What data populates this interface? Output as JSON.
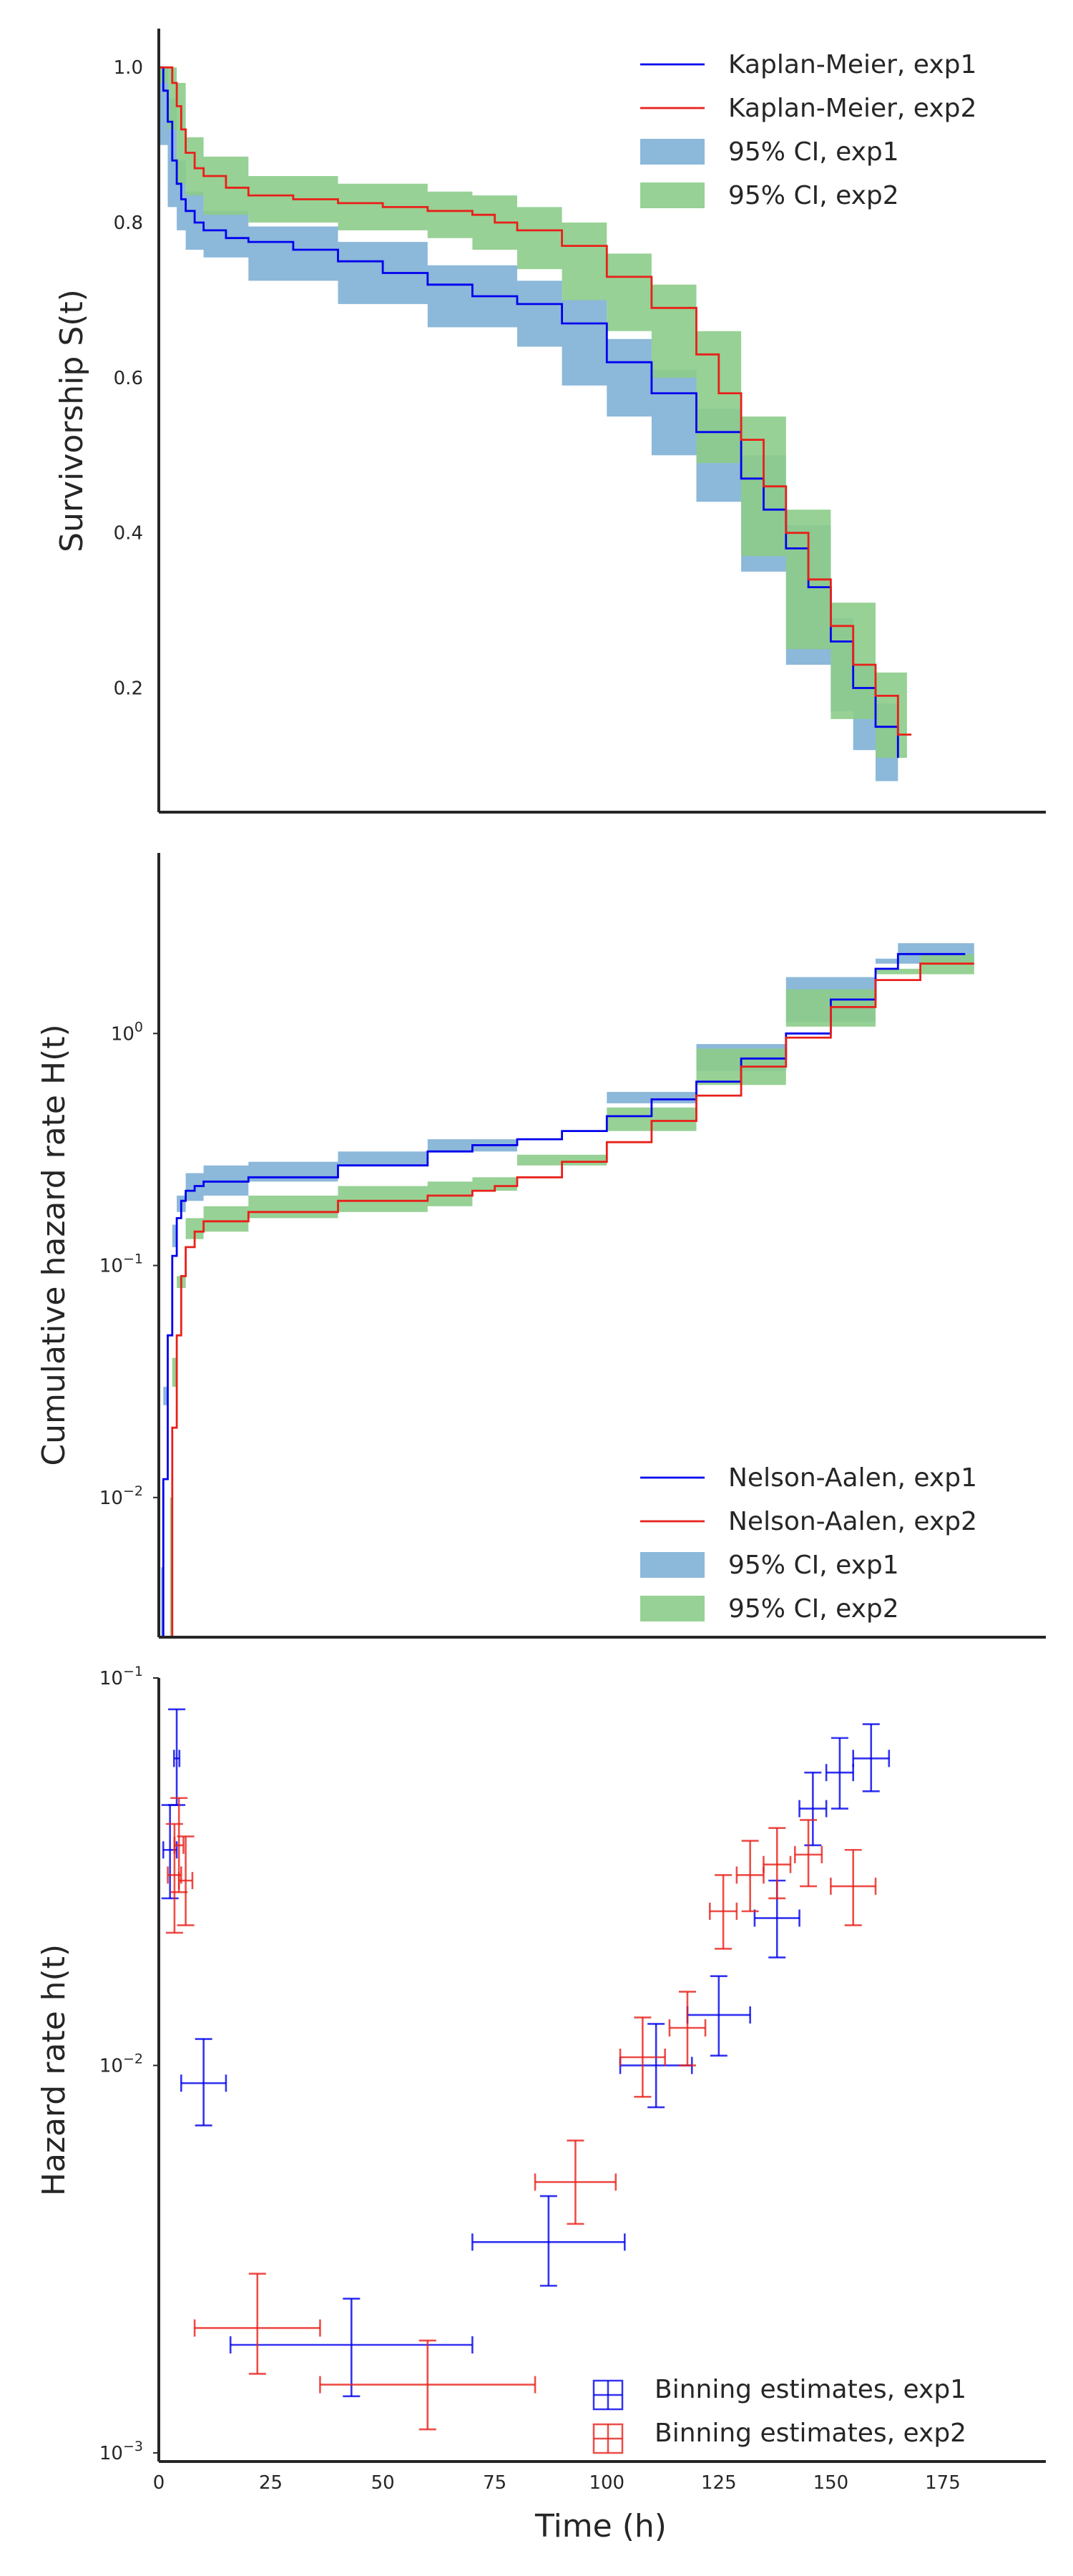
{
  "colors": {
    "exp1": "#0000ee",
    "exp2": "#e8201a",
    "ci1": "#7fb0d6",
    "ci2": "#8ccc8a",
    "axis": "#262626"
  },
  "chart_data": [
    {
      "type": "line",
      "ylabel": "Survivorship S(t)",
      "xlim": [
        0,
        198
      ],
      "ylim": [
        0.04,
        1.05
      ],
      "yticks": [
        0.2,
        0.4,
        0.6,
        0.8,
        1.0
      ],
      "yticklabels": [
        "0.2",
        "0.4",
        "0.6",
        "0.8",
        "1.0"
      ],
      "legend": "top-right",
      "grid": false,
      "legend_labels": [
        "Kaplan-Meier, exp1",
        "Kaplan-Meier, exp2",
        "95% CI, exp1",
        "95% CI, exp2"
      ],
      "series": [
        {
          "name": "Kaplan-Meier, exp1",
          "kind": "step",
          "color": "exp1",
          "x": [
            0,
            1,
            2,
            3,
            4,
            5,
            6,
            8,
            10,
            15,
            20,
            30,
            40,
            50,
            60,
            70,
            80,
            90,
            100,
            110,
            120,
            130,
            135,
            140,
            145,
            150,
            155,
            160,
            165
          ],
          "y": [
            1.0,
            0.97,
            0.93,
            0.88,
            0.85,
            0.83,
            0.815,
            0.8,
            0.79,
            0.78,
            0.775,
            0.765,
            0.75,
            0.735,
            0.72,
            0.705,
            0.695,
            0.67,
            0.62,
            0.58,
            0.53,
            0.47,
            0.43,
            0.38,
            0.33,
            0.26,
            0.2,
            0.15,
            0.11
          ]
        },
        {
          "name": "Kaplan-Meier, exp2",
          "kind": "step",
          "color": "exp2",
          "x": [
            0,
            2,
            3,
            4,
            5,
            6,
            8,
            10,
            15,
            20,
            30,
            40,
            50,
            60,
            70,
            75,
            80,
            90,
            100,
            110,
            120,
            125,
            130,
            135,
            140,
            145,
            150,
            155,
            160,
            165,
            168
          ],
          "y": [
            1.0,
            1.0,
            0.98,
            0.95,
            0.92,
            0.89,
            0.87,
            0.86,
            0.845,
            0.835,
            0.83,
            0.825,
            0.82,
            0.815,
            0.81,
            0.8,
            0.79,
            0.77,
            0.73,
            0.69,
            0.63,
            0.58,
            0.52,
            0.46,
            0.4,
            0.34,
            0.28,
            0.23,
            0.19,
            0.14,
            0.14
          ]
        }
      ],
      "bands": [
        {
          "name": "95% CI, exp1",
          "color": "ci1",
          "x": [
            0,
            2,
            4,
            6,
            10,
            20,
            40,
            60,
            80,
            90,
            100,
            110,
            120,
            130,
            140,
            150,
            155,
            160,
            165
          ],
          "lower": [
            1.0,
            0.9,
            0.82,
            0.79,
            0.765,
            0.755,
            0.725,
            0.695,
            0.665,
            0.64,
            0.59,
            0.55,
            0.5,
            0.44,
            0.35,
            0.23,
            0.17,
            0.12,
            0.08
          ],
          "upper": [
            1.0,
            0.96,
            0.88,
            0.84,
            0.815,
            0.795,
            0.775,
            0.745,
            0.725,
            0.7,
            0.65,
            0.61,
            0.56,
            0.5,
            0.41,
            0.29,
            0.23,
            0.18,
            0.14
          ]
        },
        {
          "name": "95% CI, exp2",
          "color": "ci2",
          "x": [
            0,
            2,
            4,
            6,
            10,
            20,
            40,
            60,
            70,
            80,
            90,
            100,
            110,
            120,
            130,
            140,
            150,
            160,
            167
          ],
          "lower": [
            1.0,
            0.98,
            0.92,
            0.85,
            0.835,
            0.81,
            0.8,
            0.79,
            0.78,
            0.765,
            0.74,
            0.7,
            0.66,
            0.6,
            0.49,
            0.37,
            0.25,
            0.16,
            0.11
          ],
          "upper": [
            1.0,
            1.0,
            0.98,
            0.91,
            0.885,
            0.86,
            0.85,
            0.84,
            0.835,
            0.82,
            0.8,
            0.76,
            0.72,
            0.66,
            0.55,
            0.43,
            0.31,
            0.22,
            0.17
          ]
        }
      ]
    },
    {
      "type": "line",
      "ylabel": "Cumulative hazard rate H(t)",
      "yscale": "log",
      "xlim": [
        0,
        198
      ],
      "ylim": [
        0.0025,
        6
      ],
      "yticks": [
        0.01,
        0.1,
        1
      ],
      "legend": "bottom-right",
      "grid": false,
      "legend_labels": [
        "Nelson-Aalen, exp1",
        "Nelson-Aalen, exp2",
        "95% CI, exp1",
        "95% CI, exp2"
      ],
      "series": [
        {
          "name": "Nelson-Aalen, exp1",
          "kind": "step",
          "color": "exp1",
          "x": [
            0.5,
            1,
            2,
            3,
            4,
            5,
            6,
            8,
            10,
            20,
            40,
            60,
            70,
            80,
            90,
            100,
            110,
            120,
            130,
            140,
            150,
            160,
            165,
            180
          ],
          "y": [
            0.0025,
            0.012,
            0.05,
            0.11,
            0.16,
            0.19,
            0.21,
            0.22,
            0.23,
            0.24,
            0.27,
            0.31,
            0.33,
            0.35,
            0.38,
            0.44,
            0.52,
            0.62,
            0.78,
            1.0,
            1.4,
            1.9,
            2.2,
            2.2
          ]
        },
        {
          "name": "Nelson-Aalen, exp2",
          "kind": "step",
          "color": "exp2",
          "x": [
            2.5,
            3,
            4,
            5,
            6,
            8,
            10,
            20,
            40,
            60,
            70,
            75,
            80,
            90,
            100,
            110,
            120,
            130,
            140,
            150,
            160,
            170,
            182
          ],
          "y": [
            0.0025,
            0.02,
            0.05,
            0.09,
            0.12,
            0.14,
            0.155,
            0.17,
            0.19,
            0.2,
            0.21,
            0.22,
            0.24,
            0.28,
            0.34,
            0.42,
            0.54,
            0.72,
            0.96,
            1.3,
            1.7,
            2.0,
            2.0
          ]
        }
      ],
      "bands": [
        {
          "name": "95% CI, exp1",
          "color": "ci1",
          "x": [
            0.5,
            1,
            2,
            3,
            4,
            6,
            10,
            20,
            40,
            60,
            80,
            100,
            120,
            140,
            160,
            165,
            182
          ],
          "lower": [
            0.0025,
            0.005,
            0.03,
            0.08,
            0.12,
            0.17,
            0.19,
            0.2,
            0.23,
            0.27,
            0.31,
            0.39,
            0.56,
            0.9,
            1.75,
            2.0,
            2.0
          ],
          "upper": [
            0.0025,
            0.025,
            0.08,
            0.15,
            0.2,
            0.25,
            0.27,
            0.28,
            0.31,
            0.35,
            0.39,
            0.5,
            0.69,
            1.12,
            2.1,
            2.45,
            2.45
          ]
        },
        {
          "name": "95% CI, exp2",
          "color": "ci2",
          "x": [
            2.5,
            3,
            4,
            6,
            10,
            20,
            40,
            60,
            70,
            80,
            100,
            120,
            140,
            160,
            170,
            182
          ],
          "lower": [
            0.0025,
            0.01,
            0.03,
            0.09,
            0.13,
            0.14,
            0.16,
            0.17,
            0.18,
            0.21,
            0.3,
            0.48,
            0.86,
            1.55,
            1.8,
            1.8
          ],
          "upper": [
            0.0025,
            0.04,
            0.08,
            0.16,
            0.18,
            0.2,
            0.22,
            0.23,
            0.24,
            0.27,
            0.38,
            0.6,
            1.07,
            1.9,
            2.2,
            2.2
          ]
        }
      ]
    },
    {
      "type": "scatter",
      "ylabel": "Hazard rate h(t)",
      "xlabel": "Time (h)",
      "yscale": "log",
      "xlim": [
        0,
        198
      ],
      "ylim": [
        0.00095,
        0.1
      ],
      "xticks": [
        0,
        25,
        50,
        75,
        100,
        125,
        150,
        175
      ],
      "xticklabels": [
        "0",
        "25",
        "50",
        "75",
        "100",
        "125",
        "150",
        "175"
      ],
      "yticks": [
        0.001,
        0.01,
        0.1
      ],
      "legend": "bottom-right",
      "grid": false,
      "legend_labels": [
        "Binning estimates, exp1",
        "Binning estimates, exp2"
      ],
      "series": [
        {
          "name": "Binning estimates, exp1",
          "color": "exp1",
          "points": [
            {
              "x": 2.5,
              "y": 0.036,
              "xerr": 1.5,
              "ylow": 0.027,
              "yhigh": 0.047
            },
            {
              "x": 4,
              "y": 0.062,
              "xerr": 0.6,
              "ylow": 0.047,
              "yhigh": 0.083
            },
            {
              "x": 10,
              "y": 0.009,
              "xerr": 5,
              "ylow": 0.007,
              "yhigh": 0.0117
            },
            {
              "x": 43,
              "y": 0.0019,
              "xerr": 27,
              "ylow": 0.0014,
              "yhigh": 0.0025
            },
            {
              "x": 87,
              "y": 0.0035,
              "xerr": 17,
              "ylow": 0.0027,
              "yhigh": 0.0046
            },
            {
              "x": 111,
              "y": 0.01,
              "xerr": 8,
              "ylow": 0.0078,
              "yhigh": 0.0128
            },
            {
              "x": 125,
              "y": 0.0135,
              "xerr": 7,
              "ylow": 0.0106,
              "yhigh": 0.017
            },
            {
              "x": 138,
              "y": 0.024,
              "xerr": 5,
              "ylow": 0.019,
              "yhigh": 0.03
            },
            {
              "x": 146,
              "y": 0.046,
              "xerr": 3,
              "ylow": 0.037,
              "yhigh": 0.057
            },
            {
              "x": 152,
              "y": 0.057,
              "xerr": 3,
              "ylow": 0.046,
              "yhigh": 0.07
            },
            {
              "x": 159,
              "y": 0.062,
              "xerr": 4,
              "ylow": 0.051,
              "yhigh": 0.076
            }
          ]
        },
        {
          "name": "Binning estimates, exp2",
          "color": "exp2",
          "points": [
            {
              "x": 3.5,
              "y": 0.031,
              "xerr": 1.5,
              "ylow": 0.022,
              "yhigh": 0.042
            },
            {
              "x": 4.5,
              "y": 0.037,
              "xerr": 1,
              "ylow": 0.028,
              "yhigh": 0.049
            },
            {
              "x": 6,
              "y": 0.03,
              "xerr": 1.5,
              "ylow": 0.023,
              "yhigh": 0.039
            },
            {
              "x": 22,
              "y": 0.0021,
              "xerr": 14,
              "ylow": 0.0016,
              "yhigh": 0.0029
            },
            {
              "x": 60,
              "y": 0.0015,
              "xerr": 24,
              "ylow": 0.00115,
              "yhigh": 0.00195
            },
            {
              "x": 93,
              "y": 0.005,
              "xerr": 9,
              "ylow": 0.0039,
              "yhigh": 0.0064
            },
            {
              "x": 108,
              "y": 0.0105,
              "xerr": 5,
              "ylow": 0.0083,
              "yhigh": 0.0133
            },
            {
              "x": 118,
              "y": 0.0125,
              "xerr": 4,
              "ylow": 0.01,
              "yhigh": 0.0155
            },
            {
              "x": 126,
              "y": 0.025,
              "xerr": 3,
              "ylow": 0.02,
              "yhigh": 0.031
            },
            {
              "x": 132,
              "y": 0.031,
              "xerr": 3,
              "ylow": 0.025,
              "yhigh": 0.038
            },
            {
              "x": 138,
              "y": 0.033,
              "xerr": 3,
              "ylow": 0.027,
              "yhigh": 0.041
            },
            {
              "x": 145,
              "y": 0.035,
              "xerr": 3,
              "ylow": 0.029,
              "yhigh": 0.043
            },
            {
              "x": 155,
              "y": 0.029,
              "xerr": 5,
              "ylow": 0.023,
              "yhigh": 0.036
            }
          ]
        }
      ]
    }
  ]
}
